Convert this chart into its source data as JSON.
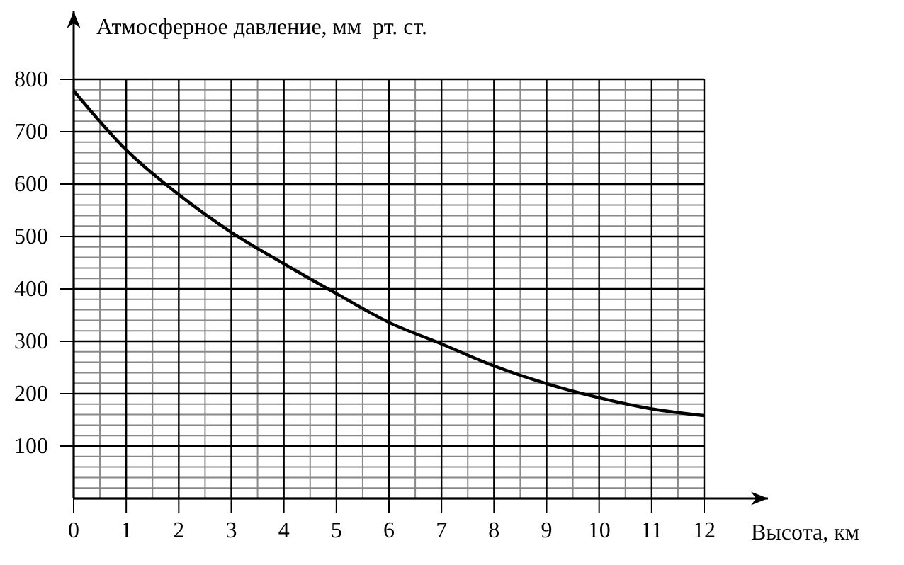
{
  "chart_data": {
    "type": "line",
    "ylabel": "Атмосферное давление, мм  рт. ст.",
    "xlabel": "Высота, км",
    "x": [
      0,
      1,
      2,
      3,
      4,
      5,
      6,
      7,
      8,
      9,
      10,
      11,
      12
    ],
    "series": [
      {
        "color": "#000000",
        "values": [
          778,
          665,
          580,
          508,
          448,
          391,
          336,
          295,
          253,
          219,
          192,
          171,
          158
        ]
      }
    ],
    "xlim": [
      0,
      12
    ],
    "xticks": [
      0,
      1,
      2,
      3,
      4,
      5,
      6,
      7,
      8,
      9,
      10,
      11,
      12
    ],
    "ylim": [
      0,
      800
    ],
    "yticks": [
      100,
      200,
      300,
      400,
      500,
      600,
      700,
      800
    ],
    "grid": true,
    "marker": "none",
    "line_style": "solid"
  }
}
